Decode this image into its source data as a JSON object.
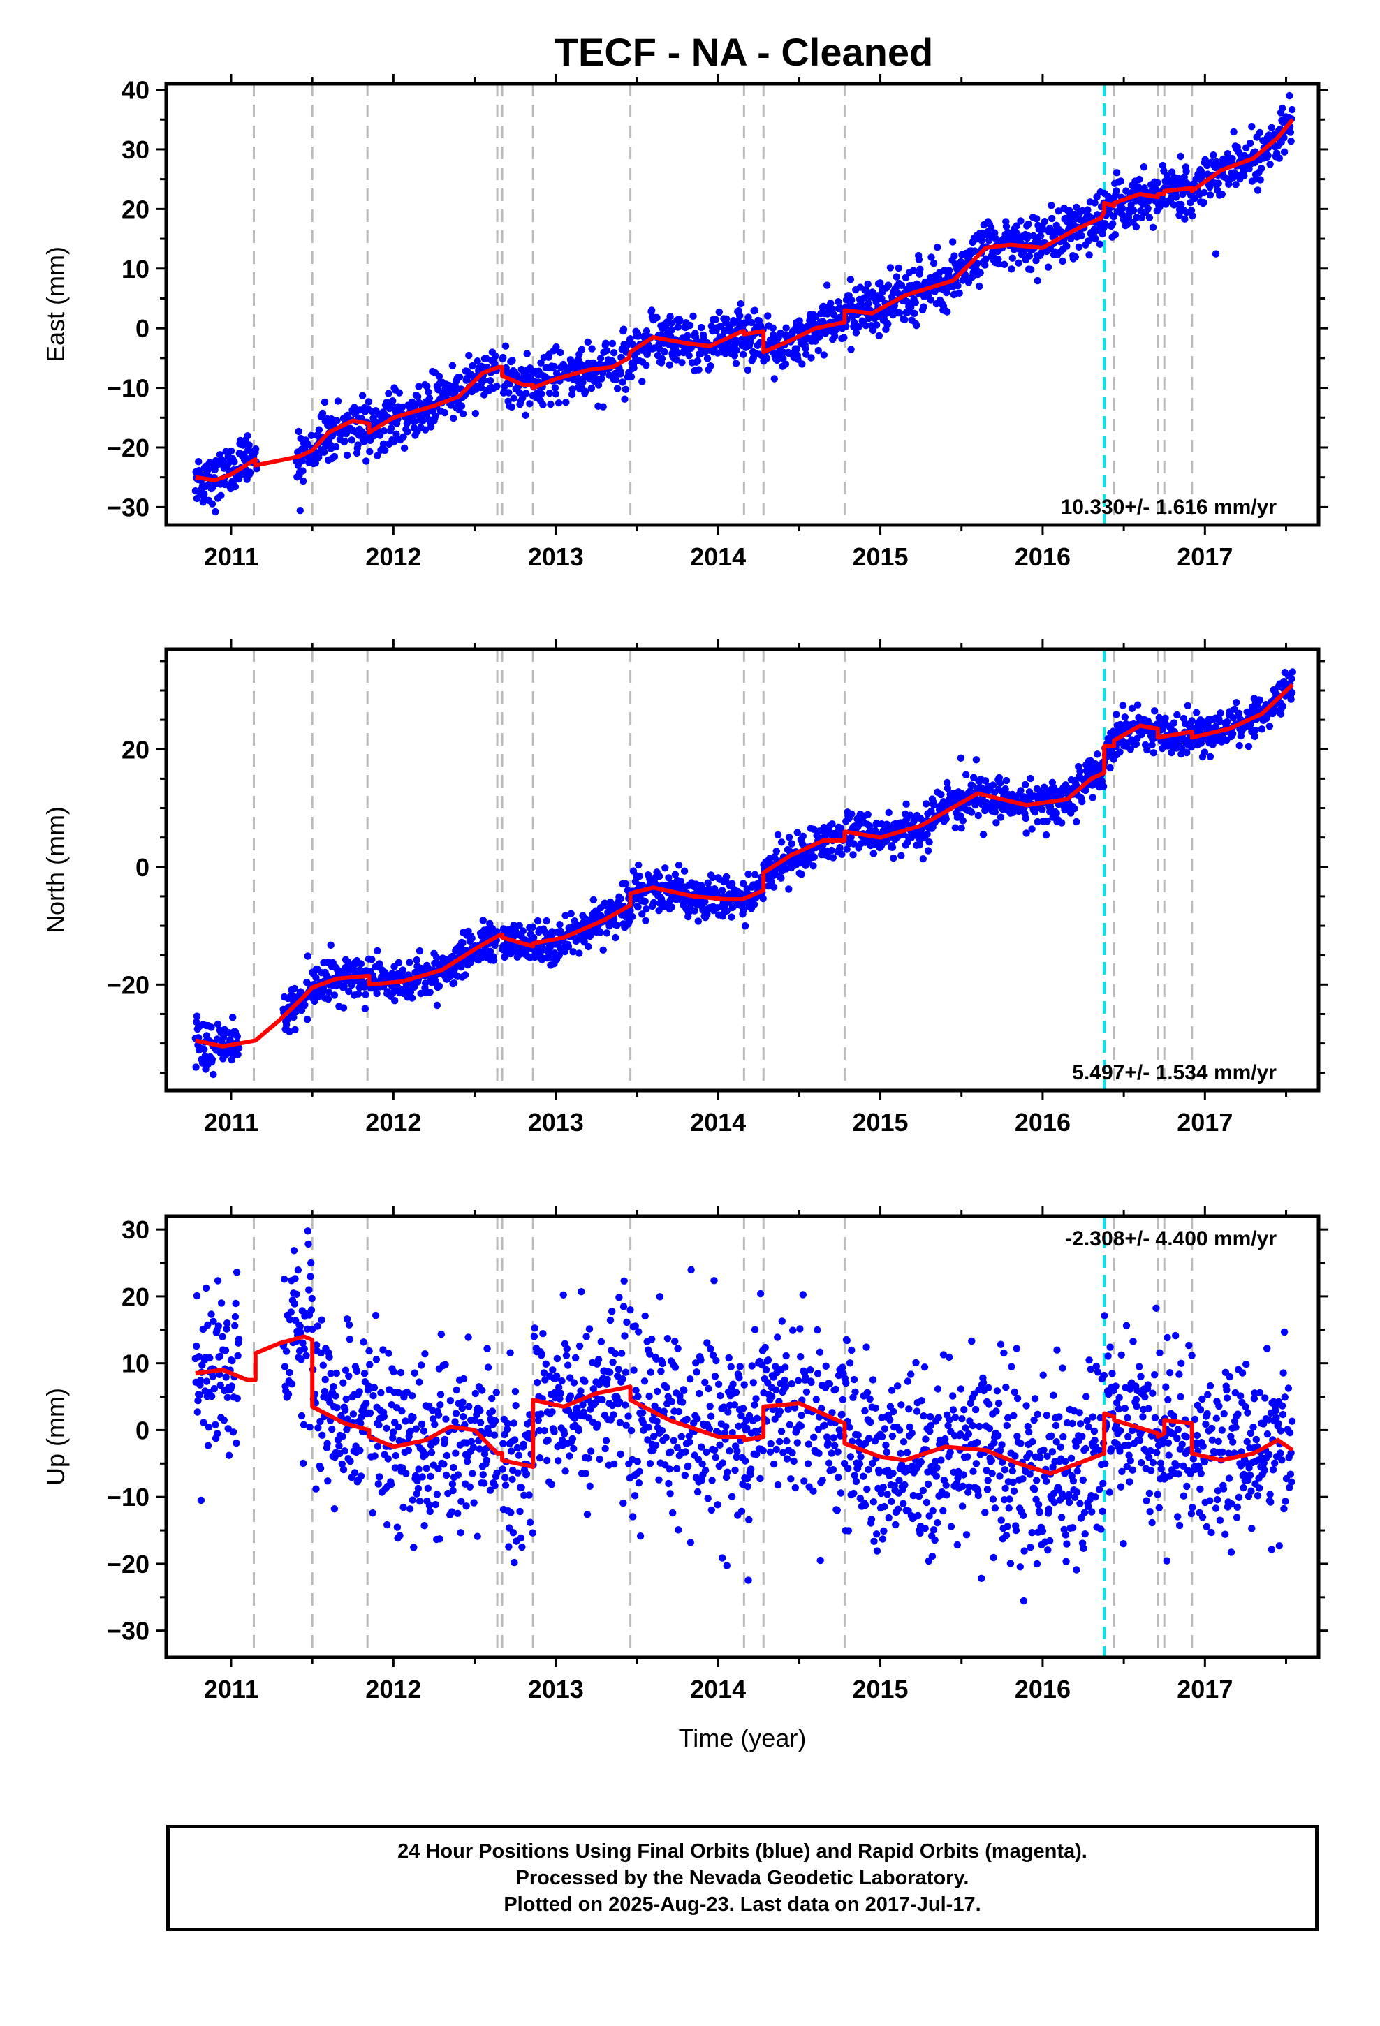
{
  "title": "TECF  - NA - Cleaned",
  "footer": {
    "line1": "24 Hour Positions Using Final Orbits (blue) and Rapid Orbits (magenta).",
    "line2": "Processed by the Nevada Geodetic Laboratory.",
    "line3": "Plotted on 2025-Aug-23. Last data on 2017-Jul-17."
  },
  "colors": {
    "points": "#0000ff",
    "model": "#ff0000",
    "equipment_change": "#bbbbbb",
    "earthquake": "#00e5ee"
  },
  "chart_data": [
    {
      "type": "scatter",
      "component": "east",
      "ylabel": "East (mm)",
      "xlim": [
        2010.6,
        2017.7
      ],
      "ylim": [
        -33,
        41
      ],
      "yticks": [
        -30,
        -20,
        -10,
        0,
        10,
        20,
        30,
        40
      ],
      "xticks": [
        2011,
        2012,
        2013,
        2014,
        2015,
        2016,
        2017
      ],
      "rate": "10.330+/- 1.616 mm/yr",
      "rate_value": 10.33,
      "series_points": "24 hour positions (blue)",
      "data_start": 2010.78,
      "data_end": 2017.54,
      "noise": 2.2,
      "gaps": [
        [
          2011.16,
          2011.4
        ],
        [
          2012.64,
          2012.67
        ]
      ],
      "model": [
        [
          2010.78,
          -25.0
        ],
        [
          2010.9,
          -25.5
        ],
        [
          2011.0,
          -24.5
        ],
        [
          2011.15,
          -22.0
        ],
        [
          2011.15,
          -23.0
        ],
        [
          2011.42,
          -21.5
        ],
        [
          2011.5,
          -20.5
        ],
        [
          2011.6,
          -17.5
        ],
        [
          2011.75,
          -15.5
        ],
        [
          2011.85,
          -16.0
        ],
        [
          2011.85,
          -17.5
        ],
        [
          2012.0,
          -15.0
        ],
        [
          2012.25,
          -13.0
        ],
        [
          2012.4,
          -11.5
        ],
        [
          2012.55,
          -7.5
        ],
        [
          2012.65,
          -6.5
        ],
        [
          2012.67,
          -6.5
        ],
        [
          2012.67,
          -8.0
        ],
        [
          2012.8,
          -9.5
        ],
        [
          2012.86,
          -9.5
        ],
        [
          2012.86,
          -10.0
        ],
        [
          2013.0,
          -8.5
        ],
        [
          2013.2,
          -7.0
        ],
        [
          2013.35,
          -6.5
        ],
        [
          2013.45,
          -5.0
        ],
        [
          2013.46,
          -4.0
        ],
        [
          2013.6,
          -1.5
        ],
        [
          2013.8,
          -2.5
        ],
        [
          2013.95,
          -3.0
        ],
        [
          2014.15,
          -0.5
        ],
        [
          2014.16,
          -0.5
        ],
        [
          2014.16,
          -1.0
        ],
        [
          2014.28,
          -0.5
        ],
        [
          2014.28,
          -4.0
        ],
        [
          2014.45,
          -2.0
        ],
        [
          2014.6,
          0.0
        ],
        [
          2014.78,
          1.0
        ],
        [
          2014.78,
          3.0
        ],
        [
          2014.95,
          2.5
        ],
        [
          2015.15,
          5.5
        ],
        [
          2015.45,
          8.0
        ],
        [
          2015.65,
          13.5
        ],
        [
          2015.8,
          14.0
        ],
        [
          2016.0,
          13.5
        ],
        [
          2016.2,
          16.5
        ],
        [
          2016.36,
          18.5
        ],
        [
          2016.38,
          19.5
        ],
        [
          2016.38,
          21.0
        ],
        [
          2016.44,
          20.5
        ],
        [
          2016.44,
          21.0
        ],
        [
          2016.6,
          22.5
        ],
        [
          2016.71,
          22.0
        ],
        [
          2016.71,
          22.5
        ],
        [
          2016.75,
          22.5
        ],
        [
          2016.75,
          23.0
        ],
        [
          2016.92,
          23.5
        ],
        [
          2016.92,
          23.0
        ],
        [
          2017.1,
          26.5
        ],
        [
          2017.3,
          28.5
        ],
        [
          2017.45,
          32.0
        ],
        [
          2017.54,
          35.0
        ]
      ]
    },
    {
      "type": "scatter",
      "component": "north",
      "ylabel": "North (mm)",
      "xlim": [
        2010.6,
        2017.7
      ],
      "ylim": [
        -38,
        37
      ],
      "yticks": [
        -20,
        0,
        20
      ],
      "xticks": [
        2011,
        2012,
        2013,
        2014,
        2015,
        2016,
        2017
      ],
      "rate": "5.497+/- 1.534 mm/yr",
      "rate_value": 5.497,
      "series_points": "24 hour positions (blue)",
      "data_start": 2010.78,
      "data_end": 2017.54,
      "noise": 1.7,
      "gaps": [
        [
          2011.05,
          2011.32
        ],
        [
          2012.64,
          2012.67
        ]
      ],
      "model": [
        [
          2010.78,
          -29.5
        ],
        [
          2010.95,
          -30.5
        ],
        [
          2011.15,
          -29.5
        ],
        [
          2011.3,
          -26.0
        ],
        [
          2011.45,
          -22.0
        ],
        [
          2011.5,
          -20.5
        ],
        [
          2011.65,
          -19.0
        ],
        [
          2011.85,
          -18.5
        ],
        [
          2011.85,
          -20.0
        ],
        [
          2012.05,
          -19.5
        ],
        [
          2012.3,
          -17.5
        ],
        [
          2012.5,
          -14.0
        ],
        [
          2012.66,
          -11.5
        ],
        [
          2012.67,
          -11.5
        ],
        [
          2012.67,
          -12.0
        ],
        [
          2012.86,
          -13.5
        ],
        [
          2012.86,
          -13.0
        ],
        [
          2013.05,
          -12.0
        ],
        [
          2013.3,
          -9.0
        ],
        [
          2013.46,
          -6.5
        ],
        [
          2013.46,
          -4.5
        ],
        [
          2013.6,
          -3.5
        ],
        [
          2013.85,
          -5.0
        ],
        [
          2014.05,
          -5.5
        ],
        [
          2014.15,
          -5.5
        ],
        [
          2014.28,
          -4.0
        ],
        [
          2014.28,
          -1.0
        ],
        [
          2014.45,
          2.0
        ],
        [
          2014.65,
          4.5
        ],
        [
          2014.78,
          4.5
        ],
        [
          2014.78,
          6.0
        ],
        [
          2015.0,
          5.0
        ],
        [
          2015.25,
          7.0
        ],
        [
          2015.6,
          12.5
        ],
        [
          2015.9,
          10.5
        ],
        [
          2016.15,
          11.5
        ],
        [
          2016.3,
          15.0
        ],
        [
          2016.38,
          16.0
        ],
        [
          2016.38,
          20.5
        ],
        [
          2016.44,
          20.5
        ],
        [
          2016.44,
          21.5
        ],
        [
          2016.6,
          24.0
        ],
        [
          2016.71,
          23.5
        ],
        [
          2016.71,
          22.0
        ],
        [
          2016.92,
          23.0
        ],
        [
          2016.92,
          22.0
        ],
        [
          2017.15,
          23.5
        ],
        [
          2017.35,
          26.0
        ],
        [
          2017.54,
          31.0
        ]
      ]
    },
    {
      "type": "scatter",
      "component": "up",
      "ylabel": "Up (mm)",
      "xlabel": "Time (year)",
      "xlim": [
        2010.6,
        2017.7
      ],
      "ylim": [
        -34,
        32
      ],
      "yticks": [
        -30,
        -20,
        -10,
        0,
        10,
        20,
        30
      ],
      "xticks": [
        2011,
        2012,
        2013,
        2014,
        2015,
        2016,
        2017
      ],
      "rate": "-2.308+/- 4.400 mm/yr",
      "rate_value": -2.308,
      "series_points": "24 hour positions (blue)",
      "data_start": 2010.78,
      "data_end": 2017.54,
      "noise": 6.5,
      "gaps": [
        [
          2011.05,
          2011.32
        ],
        [
          2012.64,
          2012.67
        ]
      ],
      "model": [
        [
          2010.78,
          8.5
        ],
        [
          2010.95,
          9.0
        ],
        [
          2011.1,
          7.5
        ],
        [
          2011.15,
          7.5
        ],
        [
          2011.15,
          11.5
        ],
        [
          2011.3,
          13.0
        ],
        [
          2011.45,
          14.0
        ],
        [
          2011.5,
          13.5
        ],
        [
          2011.5,
          3.5
        ],
        [
          2011.7,
          1.0
        ],
        [
          2011.85,
          0.0
        ],
        [
          2011.85,
          -1.0
        ],
        [
          2012.0,
          -2.5
        ],
        [
          2012.2,
          -1.5
        ],
        [
          2012.35,
          0.5
        ],
        [
          2012.5,
          0.0
        ],
        [
          2012.64,
          -3.5
        ],
        [
          2012.67,
          -3.5
        ],
        [
          2012.67,
          -4.5
        ],
        [
          2012.86,
          -5.5
        ],
        [
          2012.86,
          4.5
        ],
        [
          2013.05,
          3.5
        ],
        [
          2013.25,
          5.5
        ],
        [
          2013.46,
          6.5
        ],
        [
          2013.46,
          4.5
        ],
        [
          2013.7,
          1.5
        ],
        [
          2014.0,
          -1.0
        ],
        [
          2014.16,
          -1.0
        ],
        [
          2014.16,
          -1.5
        ],
        [
          2014.28,
          -1.0
        ],
        [
          2014.28,
          3.5
        ],
        [
          2014.5,
          4.0
        ],
        [
          2014.78,
          1.0
        ],
        [
          2014.78,
          -2.0
        ],
        [
          2015.0,
          -4.0
        ],
        [
          2015.15,
          -4.5
        ],
        [
          2015.4,
          -2.5
        ],
        [
          2015.65,
          -3.0
        ],
        [
          2015.85,
          -5.0
        ],
        [
          2016.05,
          -6.5
        ],
        [
          2016.38,
          -3.5
        ],
        [
          2016.38,
          2.5
        ],
        [
          2016.44,
          2.0
        ],
        [
          2016.44,
          1.5
        ],
        [
          2016.71,
          -0.5
        ],
        [
          2016.71,
          -1.0
        ],
        [
          2016.75,
          -0.5
        ],
        [
          2016.75,
          1.5
        ],
        [
          2016.92,
          1.0
        ],
        [
          2016.92,
          -3.5
        ],
        [
          2017.1,
          -4.5
        ],
        [
          2017.3,
          -3.5
        ],
        [
          2017.45,
          -1.5
        ],
        [
          2017.54,
          -3.0
        ]
      ]
    }
  ],
  "event_lines": {
    "equipment": [
      2011.14,
      2011.5,
      2011.84,
      2012.64,
      2012.67,
      2012.86,
      2013.46,
      2014.16,
      2014.28,
      2014.78,
      2016.44,
      2016.71,
      2016.75,
      2016.92
    ],
    "earthquake": [
      2016.38
    ]
  }
}
